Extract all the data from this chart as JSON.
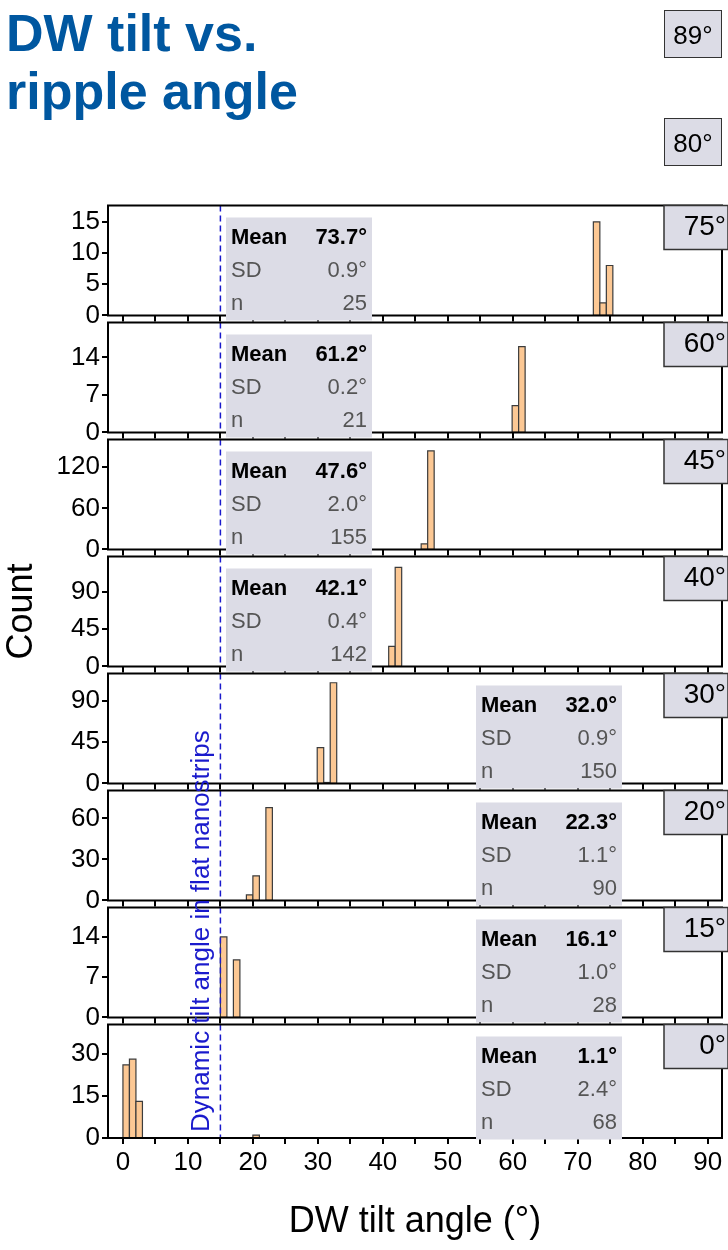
{
  "chart_data": [
    {
      "type": "other",
      "title": "DW tilt vs. ripple angle",
      "annotations": [
        "89°",
        "80°"
      ]
    },
    {
      "type": "histogram",
      "bins": [
        72.4,
        73.4,
        74.4,
        75.4
      ],
      "values": [
        15,
        2,
        8
      ],
      "color": "#fcc894",
      "xlim": [
        -2.3,
        92.2
      ],
      "xticks": [
        0,
        {
          "value": 5,
          "label": null
        },
        10,
        {
          "value": 15,
          "label": null
        },
        20,
        {
          "value": 25,
          "label": null
        },
        30,
        {
          "value": 35,
          "label": null
        },
        40,
        {
          "value": 45,
          "label": null
        },
        50,
        {
          "value": 55,
          "label": null
        },
        60,
        {
          "value": 65,
          "label": null
        },
        70,
        {
          "value": 75,
          "label": null
        },
        80,
        {
          "value": 85,
          "label": null
        },
        90
      ],
      "ylim": [
        0,
        17.6
      ],
      "yticks": [
        0,
        5,
        10,
        15
      ],
      "tick_labels": "y",
      "ref_lines": [
        {
          "axis": "x",
          "value": 15,
          "color": "#1a1acc",
          "line_style": "dashed"
        }
      ],
      "annotations": [
        "75°",
        "Mean 73.7°",
        "SD 0.9°",
        "n 25"
      ]
    },
    {
      "type": "histogram",
      "bins": [
        59.9,
        60.9,
        61.9
      ],
      "values": [
        5,
        16
      ],
      "color": "#fcc894",
      "xlim": [
        -2.3,
        92.2
      ],
      "xticks": [
        0,
        {
          "value": 5,
          "label": null
        },
        10,
        {
          "value": 15,
          "label": null
        },
        20,
        {
          "value": 25,
          "label": null
        },
        30,
        {
          "value": 35,
          "label": null
        },
        40,
        {
          "value": 45,
          "label": null
        },
        50,
        {
          "value": 55,
          "label": null
        },
        60,
        {
          "value": 65,
          "label": null
        },
        70,
        {
          "value": 75,
          "label": null
        },
        80,
        {
          "value": 85,
          "label": null
        },
        90
      ],
      "ylim": [
        0,
        20.5
      ],
      "yticks": [
        0,
        7,
        14
      ],
      "tick_labels": "y",
      "ref_lines": [
        {
          "axis": "x",
          "value": 15,
          "color": "#1a1acc",
          "line_style": "dashed"
        }
      ],
      "annotations": [
        "60°",
        "Mean 61.2°",
        "SD 0.2°",
        "n 21"
      ]
    },
    {
      "type": "histogram",
      "bins": [
        45.9,
        46.9,
        47.9
      ],
      "values": [
        8,
        144
      ],
      "color": "#fcc894",
      "xlim": [
        -2.3,
        92.2
      ],
      "xticks": [
        0,
        {
          "value": 5,
          "label": null
        },
        10,
        {
          "value": 15,
          "label": null
        },
        20,
        {
          "value": 25,
          "label": null
        },
        30,
        {
          "value": 35,
          "label": null
        },
        40,
        {
          "value": 45,
          "label": null
        },
        50,
        {
          "value": 55,
          "label": null
        },
        60,
        {
          "value": 65,
          "label": null
        },
        70,
        {
          "value": 75,
          "label": null
        },
        80,
        {
          "value": 85,
          "label": null
        },
        90
      ],
      "ylim": [
        0,
        160.5
      ],
      "yticks": [
        0,
        60,
        120
      ],
      "tick_labels": "y",
      "ref_lines": [
        {
          "axis": "x",
          "value": 15,
          "color": "#1a1acc",
          "line_style": "dashed"
        }
      ],
      "annotations": [
        "45°",
        "Mean 47.6°",
        "SD 2.0°",
        "n 155"
      ]
    },
    {
      "type": "histogram",
      "bins": [
        40.9,
        41.9,
        42.9
      ],
      "values": [
        24,
        119
      ],
      "color": "#fcc894",
      "xlim": [
        -2.3,
        92.2
      ],
      "xticks": [
        0,
        {
          "value": 5,
          "label": null
        },
        10,
        {
          "value": 15,
          "label": null
        },
        20,
        {
          "value": 25,
          "label": null
        },
        30,
        {
          "value": 35,
          "label": null
        },
        40,
        {
          "value": 45,
          "label": null
        },
        50,
        {
          "value": 55,
          "label": null
        },
        60,
        {
          "value": 65,
          "label": null
        },
        70,
        {
          "value": 75,
          "label": null
        },
        80,
        {
          "value": 85,
          "label": null
        },
        90
      ],
      "ylim": [
        0,
        132
      ],
      "yticks": [
        0,
        45,
        90
      ],
      "ylabel": "Count",
      "tick_labels": "y",
      "ref_lines": [
        {
          "axis": "x",
          "value": 15,
          "color": "#1a1acc",
          "line_style": "dashed"
        }
      ],
      "annotations": [
        "40°",
        "Mean 42.1°",
        "SD 0.4°",
        "n 142"
      ]
    },
    {
      "type": "histogram",
      "bins": [
        29.9,
        30.9,
        31.9,
        32.9
      ],
      "values": [
        39,
        1,
        110
      ],
      "color": "#fcc894",
      "xlim": [
        -2.3,
        92.2
      ],
      "xticks": [
        0,
        {
          "value": 5,
          "label": null
        },
        10,
        {
          "value": 15,
          "label": null
        },
        20,
        {
          "value": 25,
          "label": null
        },
        30,
        {
          "value": 35,
          "label": null
        },
        40,
        {
          "value": 45,
          "label": null
        },
        50,
        {
          "value": 55,
          "label": null
        },
        60,
        {
          "value": 65,
          "label": null
        },
        70,
        {
          "value": 75,
          "label": null
        },
        80,
        {
          "value": 85,
          "label": null
        },
        90
      ],
      "ylim": [
        0,
        120
      ],
      "yticks": [
        0,
        45,
        90
      ],
      "tick_labels": "y",
      "ref_lines": [
        {
          "axis": "x",
          "value": 15,
          "color": "#1a1acc",
          "line_style": "dashed"
        }
      ],
      "annotations": [
        "30°",
        "Mean 32.0°",
        "SD 0.9°",
        "n 150"
      ]
    },
    {
      "type": "histogram",
      "bins": [
        19,
        20,
        21,
        22,
        23
      ],
      "values": [
        4,
        18,
        0,
        68
      ],
      "color": "#fcc894",
      "xlim": [
        -2.3,
        92.2
      ],
      "xticks": [
        0,
        {
          "value": 5,
          "label": null
        },
        10,
        {
          "value": 15,
          "label": null
        },
        20,
        {
          "value": 25,
          "label": null
        },
        30,
        {
          "value": 35,
          "label": null
        },
        40,
        {
          "value": 45,
          "label": null
        },
        50,
        {
          "value": 55,
          "label": null
        },
        60,
        {
          "value": 65,
          "label": null
        },
        70,
        {
          "value": 75,
          "label": null
        },
        80,
        {
          "value": 85,
          "label": null
        },
        90
      ],
      "ylim": [
        0,
        80.4
      ],
      "yticks": [
        0,
        30,
        60
      ],
      "tick_labels": "y",
      "ref_lines": [
        {
          "axis": "x",
          "value": 15,
          "color": "#1a1acc",
          "line_style": "dashed"
        }
      ],
      "annotations": [
        "20°",
        "Mean 22.3°",
        "SD 1.1°",
        "n 90"
      ]
    },
    {
      "type": "histogram",
      "bins": [
        15,
        16,
        17,
        18
      ],
      "values": [
        14,
        0,
        10
      ],
      "color": "#fcc894",
      "xlim": [
        -2.3,
        92.2
      ],
      "xticks": [
        0,
        {
          "value": 5,
          "label": null
        },
        10,
        {
          "value": 15,
          "label": null
        },
        20,
        {
          "value": 25,
          "label": null
        },
        30,
        {
          "value": 35,
          "label": null
        },
        40,
        {
          "value": 45,
          "label": null
        },
        50,
        {
          "value": 55,
          "label": null
        },
        60,
        {
          "value": 65,
          "label": null
        },
        70,
        {
          "value": 75,
          "label": null
        },
        80,
        {
          "value": 85,
          "label": null
        },
        90
      ],
      "ylim": [
        0,
        19.1
      ],
      "yticks": [
        0,
        7,
        14
      ],
      "tick_labels": "y",
      "ref_lines": [
        {
          "axis": "x",
          "value": 15,
          "color": "#1a1acc",
          "line_style": "dashed"
        }
      ],
      "annotations": [
        "15°",
        "Mean 16.1°",
        "SD 1.0°",
        "n 28"
      ]
    },
    {
      "type": "histogram",
      "bins": [
        0,
        1,
        2,
        3,
        4,
        5,
        6,
        7,
        8,
        9,
        10,
        11,
        12,
        13,
        14,
        15,
        16,
        17,
        18,
        19,
        20,
        21
      ],
      "values": [
        26,
        28,
        13,
        0,
        0,
        0,
        0,
        0,
        0,
        0,
        0,
        0,
        0,
        0,
        0,
        0,
        0,
        0,
        0,
        0,
        1
      ],
      "color": "#fcc894",
      "xlim": [
        -2.3,
        92.2
      ],
      "xticks": [
        0,
        {
          "value": 5,
          "label": null
        },
        10,
        {
          "value": 15,
          "label": null
        },
        20,
        {
          "value": 25,
          "label": null
        },
        30,
        {
          "value": 35,
          "label": null
        },
        40,
        {
          "value": 45,
          "label": null
        },
        50,
        {
          "value": 55,
          "label": null
        },
        60,
        {
          "value": 65,
          "label": null
        },
        70,
        {
          "value": 75,
          "label": null
        },
        80,
        {
          "value": 85,
          "label": null
        },
        90
      ],
      "ylim": [
        0,
        40.3
      ],
      "yticks": [
        0,
        15,
        30
      ],
      "xlabel": "DW tilt angle (°)",
      "ref_lines": [
        {
          "axis": "x",
          "value": 15,
          "color": "#1a1acc",
          "line_style": "dashed",
          "label": "Dynamic tilt angle in flat nanostrips"
        }
      ],
      "annotations": [
        "0°",
        "Mean 1.1°",
        "SD 2.4°",
        "n 68"
      ]
    }
  ]
}
